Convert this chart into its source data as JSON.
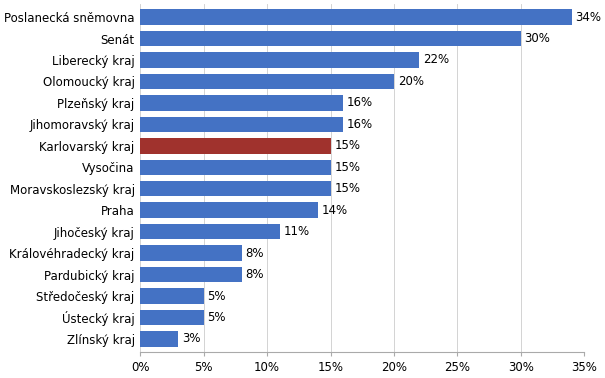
{
  "categories": [
    "Zlínský kraj",
    "Ústecký kraj",
    "Středočeský kraj",
    "Pardubický kraj",
    "Královéhradecký kraj",
    "Jihočeský kraj",
    "Praha",
    "Moravskoslezský kraj",
    "Vysočina",
    "Karlovarský kraj",
    "Jihomoravský kraj",
    "Plzeňský kraj",
    "Olomoucký kraj",
    "Liberecký kraj",
    "Senát",
    "Poslanecká sněmovna"
  ],
  "values": [
    3,
    5,
    5,
    8,
    8,
    11,
    14,
    15,
    15,
    15,
    16,
    16,
    20,
    22,
    30,
    34
  ],
  "bar_colors": [
    "#4472C4",
    "#4472C4",
    "#4472C4",
    "#4472C4",
    "#4472C4",
    "#4472C4",
    "#4472C4",
    "#4472C4",
    "#4472C4",
    "#A0322D",
    "#4472C4",
    "#4472C4",
    "#4472C4",
    "#4472C4",
    "#4472C4",
    "#4472C4"
  ],
  "xlim": [
    0,
    35
  ],
  "xtick_values": [
    0,
    5,
    10,
    15,
    20,
    25,
    30,
    35
  ],
  "background_color": "#FFFFFF",
  "label_fontsize": 8.5,
  "tick_fontsize": 8.5,
  "bar_height": 0.72
}
